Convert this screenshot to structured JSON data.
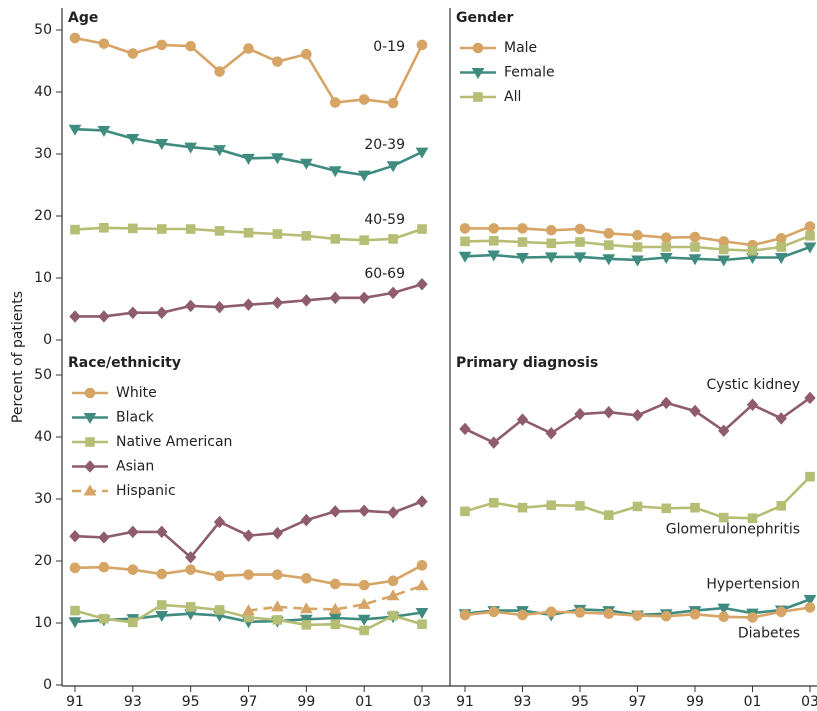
{
  "chart_data": [
    {
      "type": "line",
      "title": "Age",
      "ylabel": "Percent of patients",
      "ylim": [
        0,
        50
      ],
      "yticks": [
        0,
        10,
        20,
        30,
        40,
        50
      ],
      "series": [
        {
          "name": "0-19",
          "color": "#d6a465",
          "marker": "circle",
          "values": [
            48.7,
            47.8,
            46.2,
            47.6,
            47.4,
            43.3,
            47.0,
            44.9,
            46.1,
            38.3,
            38.8,
            38.2,
            47.6
          ]
        },
        {
          "name": "20-39",
          "color": "#3f8b80",
          "marker": "triangle-down",
          "values": [
            34.0,
            33.8,
            32.5,
            31.7,
            31.1,
            30.7,
            29.3,
            29.4,
            28.5,
            27.3,
            26.6,
            28.1,
            30.3
          ]
        },
        {
          "name": "40-59",
          "color": "#b5be74",
          "marker": "square",
          "values": [
            17.8,
            18.1,
            18.0,
            17.9,
            17.9,
            17.6,
            17.3,
            17.1,
            16.8,
            16.3,
            16.1,
            16.3,
            17.9
          ]
        },
        {
          "name": "60-69",
          "color": "#8e5c6c",
          "marker": "diamond",
          "values": [
            3.8,
            3.8,
            4.4,
            4.4,
            5.5,
            5.3,
            5.7,
            6.0,
            6.4,
            6.8,
            6.8,
            7.6,
            9.0
          ]
        }
      ]
    },
    {
      "type": "line",
      "title": "Gender",
      "ylim": [
        0,
        50
      ],
      "legend": "top-left",
      "series": [
        {
          "name": "Male",
          "color": "#d6a465",
          "marker": "circle",
          "values": [
            18.0,
            18.0,
            18.0,
            17.7,
            17.9,
            17.2,
            16.9,
            16.5,
            16.6,
            15.9,
            15.3,
            16.4,
            18.3
          ]
        },
        {
          "name": "Female",
          "color": "#3f8b80",
          "marker": "triangle-down",
          "values": [
            13.5,
            13.7,
            13.3,
            13.4,
            13.4,
            13.1,
            12.9,
            13.3,
            13.1,
            12.9,
            13.3,
            13.3,
            15.0
          ]
        },
        {
          "name": "All",
          "color": "#b5be74",
          "marker": "square",
          "values": [
            15.9,
            16.0,
            15.8,
            15.6,
            15.8,
            15.3,
            15.0,
            15.0,
            15.0,
            14.6,
            14.4,
            15.0,
            16.8
          ]
        }
      ]
    },
    {
      "type": "line",
      "title": "Race/ethnicity",
      "ylim": [
        0,
        50
      ],
      "yticks": [
        0,
        10,
        20,
        30,
        40,
        50
      ],
      "legend": "top-left",
      "categories": [
        "91",
        null,
        "93",
        null,
        "95",
        null,
        "97",
        null,
        "99",
        null,
        "01",
        null,
        "03"
      ],
      "series": [
        {
          "name": "White",
          "color": "#d6a465",
          "marker": "circle",
          "values": [
            18.9,
            19.0,
            18.6,
            17.9,
            18.6,
            17.6,
            17.8,
            17.8,
            17.2,
            16.3,
            16.1,
            16.8,
            19.3
          ]
        },
        {
          "name": "Black",
          "color": "#3f8b80",
          "marker": "triangle-down",
          "values": [
            10.2,
            10.5,
            10.7,
            11.2,
            11.5,
            11.2,
            10.2,
            10.3,
            10.6,
            10.8,
            10.6,
            11.0,
            11.7
          ]
        },
        {
          "name": "Native American",
          "color": "#b5be74",
          "marker": "square",
          "values": [
            12.0,
            10.7,
            10.1,
            12.9,
            12.6,
            12.1,
            10.9,
            10.5,
            9.7,
            9.8,
            8.8,
            11.2,
            9.8
          ]
        },
        {
          "name": "Asian",
          "color": "#8e5c6c",
          "marker": "diamond",
          "values": [
            24.0,
            23.8,
            24.7,
            24.7,
            20.6,
            26.3,
            24.1,
            24.5,
            26.6,
            28.0,
            28.1,
            27.8,
            29.6
          ]
        },
        {
          "name": "Hispanic",
          "color": "#d6a465",
          "marker": "triangle-up",
          "dash": true,
          "values": [
            null,
            null,
            null,
            null,
            null,
            null,
            12.0,
            12.6,
            12.3,
            12.2,
            13.0,
            14.4,
            16.0
          ]
        }
      ]
    },
    {
      "type": "line",
      "title": "Primary diagnosis",
      "ylim": [
        0,
        50
      ],
      "categories": [
        "91",
        null,
        "93",
        null,
        "95",
        null,
        "97",
        null,
        "99",
        null,
        "01",
        null,
        "03"
      ],
      "series": [
        {
          "name": "Cystic kidney",
          "color": "#8e5c6c",
          "marker": "diamond",
          "values": [
            41.3,
            39.1,
            42.8,
            40.6,
            43.7,
            44.0,
            43.5,
            45.5,
            44.2,
            41.0,
            45.2,
            43.0,
            46.3
          ]
        },
        {
          "name": "Glomerulonephritis",
          "color": "#b5be74",
          "marker": "square",
          "values": [
            28.0,
            29.4,
            28.6,
            29.0,
            28.9,
            27.4,
            28.8,
            28.5,
            28.6,
            27.0,
            26.9,
            28.9,
            33.6
          ]
        },
        {
          "name": "Hypertension",
          "color": "#3f8b80",
          "marker": "triangle-down",
          "values": [
            11.5,
            12.0,
            12.0,
            11.3,
            12.2,
            12.0,
            11.3,
            11.5,
            12.0,
            12.4,
            11.6,
            12.1,
            13.8
          ]
        },
        {
          "name": "Diabetes",
          "color": "#d6a465",
          "marker": "circle",
          "values": [
            11.3,
            11.8,
            11.3,
            11.8,
            11.7,
            11.5,
            11.2,
            11.1,
            11.4,
            11.0,
            10.9,
            11.8,
            12.5
          ]
        }
      ]
    }
  ]
}
